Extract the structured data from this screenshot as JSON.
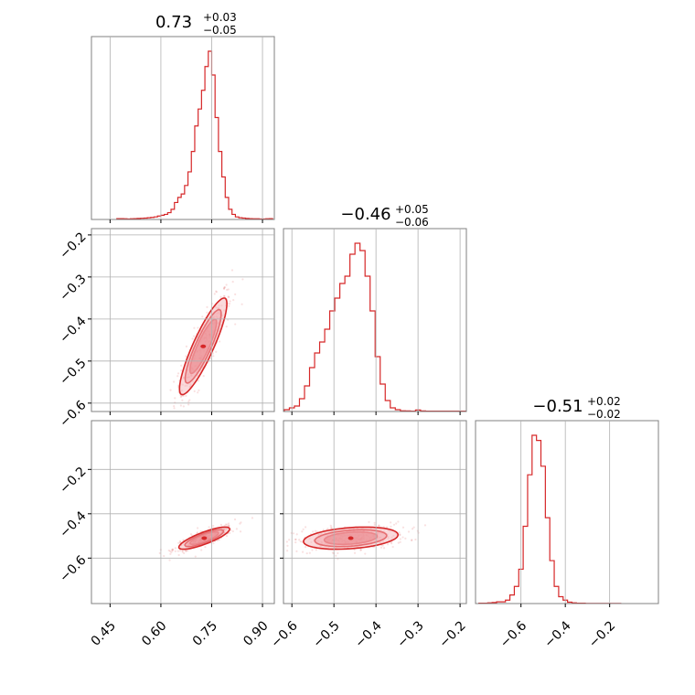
{
  "colors": {
    "accent": "#d62728",
    "frame": "#808080",
    "grid": "#b0b0b0",
    "fill_light": "#f5b5ba",
    "fill_mid": "#ea8a92"
  },
  "chart_data": {
    "type": "corner",
    "parameters": [
      {
        "title_main": "0.73",
        "title_plus": "+0.03",
        "title_minus": "−0.05",
        "median": 0.73,
        "err_plus": 0.03,
        "err_minus": 0.05,
        "range": [
          0.395,
          0.935
        ],
        "ticks": [
          0.45,
          0.6,
          0.75,
          0.9
        ],
        "tick_labels": [
          "0.45",
          "0.60",
          "0.75",
          "0.90"
        ]
      },
      {
        "title_main": "−0.46",
        "title_plus": "+0.05",
        "title_minus": "−0.06",
        "median": -0.46,
        "err_plus": 0.05,
        "err_minus": 0.06,
        "range": [
          -0.62,
          -0.185
        ],
        "ticks": [
          -0.6,
          -0.5,
          -0.4,
          -0.3,
          -0.2
        ],
        "tick_labels": [
          "−0.6",
          "−0.5",
          "−0.4",
          "−0.3",
          "−0.2"
        ]
      },
      {
        "title_main": "−0.51",
        "title_plus": "+0.02",
        "title_minus": "−0.02",
        "median": -0.51,
        "err_plus": 0.02,
        "err_minus": 0.02,
        "range": [
          -0.805,
          0.02
        ],
        "ticks": [
          -0.6,
          -0.4,
          -0.2
        ],
        "tick_labels": [
          "−0.6",
          "−0.4",
          "−0.2"
        ]
      }
    ],
    "histograms": [
      {
        "x": [
          0.475,
          0.485,
          0.495,
          0.505,
          0.515,
          0.525,
          0.535,
          0.545,
          0.555,
          0.565,
          0.575,
          0.585,
          0.595,
          0.605,
          0.615,
          0.625,
          0.635,
          0.645,
          0.655,
          0.665,
          0.675,
          0.685,
          0.695,
          0.705,
          0.715,
          0.725,
          0.735,
          0.745,
          0.755,
          0.765,
          0.775,
          0.785,
          0.795,
          0.805,
          0.815,
          0.825,
          0.835,
          0.845,
          0.855,
          0.865,
          0.875,
          0.885,
          0.895,
          0.905,
          0.915,
          0.925
        ],
        "counts": [
          0.005,
          0.005,
          0.004,
          0.003,
          0.004,
          0.005,
          0.006,
          0.007,
          0.008,
          0.01,
          0.012,
          0.015,
          0.02,
          0.025,
          0.03,
          0.04,
          0.06,
          0.1,
          0.13,
          0.15,
          0.2,
          0.28,
          0.4,
          0.55,
          0.65,
          0.76,
          0.9,
          0.99,
          0.85,
          0.6,
          0.4,
          0.25,
          0.13,
          0.06,
          0.03,
          0.015,
          0.01,
          0.008,
          0.006,
          0.005,
          0.004,
          0.004,
          0.003,
          0.003,
          0.004,
          0.005
        ]
      },
      {
        "x": [
          -0.612,
          -0.6,
          -0.588,
          -0.576,
          -0.564,
          -0.552,
          -0.54,
          -0.528,
          -0.516,
          -0.504,
          -0.492,
          -0.48,
          -0.468,
          -0.456,
          -0.444,
          -0.432,
          -0.42,
          -0.408,
          -0.396,
          -0.384,
          -0.372,
          -0.36,
          -0.348,
          -0.336,
          -0.324,
          -0.312,
          -0.3,
          -0.288,
          -0.276,
          -0.264,
          -0.252,
          -0.24,
          -0.228,
          -0.216,
          -0.204,
          -0.192
        ],
        "counts": [
          0.01,
          0.02,
          0.03,
          0.07,
          0.14,
          0.24,
          0.32,
          0.38,
          0.45,
          0.55,
          0.62,
          0.7,
          0.74,
          0.86,
          0.92,
          0.88,
          0.74,
          0.55,
          0.3,
          0.15,
          0.06,
          0.02,
          0.01,
          0.004,
          0.003,
          0.002,
          0.008,
          0.003,
          0.002,
          0.002,
          0.002,
          0.002,
          0.002,
          0.002,
          0.002,
          0.002
        ]
      },
      {
        "x": [
          -0.78,
          -0.76,
          -0.74,
          -0.72,
          -0.7,
          -0.68,
          -0.66,
          -0.64,
          -0.62,
          -0.6,
          -0.58,
          -0.56,
          -0.54,
          -0.52,
          -0.5,
          -0.48,
          -0.46,
          -0.44,
          -0.42,
          -0.4,
          -0.38,
          -0.36,
          -0.34,
          -0.32,
          -0.3,
          -0.28,
          -0.26,
          -0.24,
          -0.22,
          -0.2,
          -0.18,
          -0.16
        ],
        "counts": [
          0.002,
          0.002,
          0.004,
          0.006,
          0.01,
          0.01,
          0.02,
          0.05,
          0.1,
          0.2,
          0.45,
          0.75,
          0.98,
          0.95,
          0.8,
          0.5,
          0.25,
          0.1,
          0.04,
          0.02,
          0.008,
          0.004,
          0.002,
          0.002,
          0.001,
          0.001,
          0.001,
          0.001,
          0.001,
          0.001,
          0.001,
          0.001
        ]
      }
    ],
    "joint": [
      {
        "pair": [
          0,
          1
        ],
        "corr": 0.88,
        "contours": [
          {
            "mean": [
              0.725,
              -0.465
            ],
            "sx": 0.028,
            "sy": 0.046,
            "level": 1.4
          },
          {
            "mean": [
              0.725,
              -0.465
            ],
            "sx": 0.028,
            "sy": 0.046,
            "level": 1.9
          },
          {
            "mean": [
              0.725,
              -0.465
            ],
            "sx": 0.028,
            "sy": 0.046,
            "level": 2.5
          }
        ]
      },
      {
        "pair": [
          0,
          2
        ],
        "corr": 0.82,
        "contours": [
          {
            "mean": [
              0.728,
              -0.51
            ],
            "sx": 0.03,
            "sy": 0.02,
            "level": 1.4
          },
          {
            "mean": [
              0.728,
              -0.51
            ],
            "sx": 0.03,
            "sy": 0.02,
            "level": 1.9
          },
          {
            "mean": [
              0.728,
              -0.51
            ],
            "sx": 0.03,
            "sy": 0.02,
            "level": 2.5
          }
        ]
      },
      {
        "pair": [
          1,
          2
        ],
        "corr": 0.3,
        "contours": [
          {
            "mean": [
              -0.46,
              -0.51
            ],
            "sx": 0.045,
            "sy": 0.02,
            "level": 1.4
          },
          {
            "mean": [
              -0.46,
              -0.51
            ],
            "sx": 0.045,
            "sy": 0.02,
            "level": 1.9
          },
          {
            "mean": [
              -0.46,
              -0.51
            ],
            "sx": 0.045,
            "sy": 0.02,
            "level": 2.5
          }
        ]
      }
    ],
    "grid": true
  }
}
